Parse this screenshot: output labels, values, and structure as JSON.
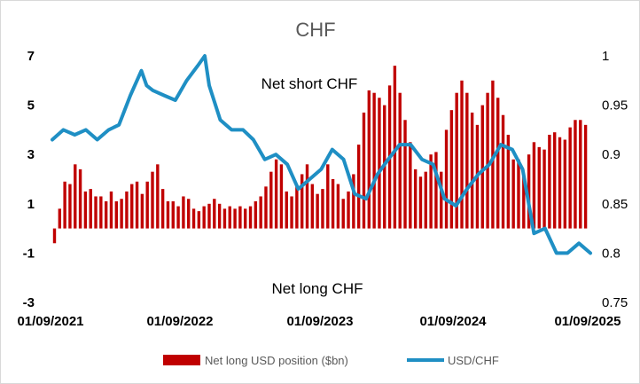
{
  "chart_data": {
    "type": "bar+line",
    "title": "CHF",
    "annotations": [
      "Net short CHF",
      "Net long CHF"
    ],
    "x_tick_labels": [
      "01/09/2021",
      "01/09/2022",
      "01/09/2023",
      "01/09/2024",
      "01/09/2025"
    ],
    "x_range": [
      "2021-09-01",
      "2025-09-01"
    ],
    "y_left": {
      "ticks": [
        -3,
        -1,
        1,
        3,
        5,
        7
      ],
      "range": [
        -3,
        7
      ]
    },
    "y_right": {
      "ticks": [
        0.75,
        0.8,
        0.85,
        0.9,
        0.95,
        1
      ],
      "tick_labels": [
        "0.75",
        "0.8",
        "0.85",
        "0.9",
        "0.95",
        "1"
      ],
      "range": [
        0.75,
        1
      ]
    },
    "grid": false,
    "legend_position": "bottom",
    "series": [
      {
        "name": "Net long USD position ($bn)",
        "kind": "bar",
        "axis": "left",
        "color": "#c00000",
        "x": [
          "2021-09-07",
          "2021-09-21",
          "2021-10-05",
          "2021-10-19",
          "2021-11-02",
          "2021-11-16",
          "2021-11-30",
          "2021-12-14",
          "2021-12-28",
          "2022-01-11",
          "2022-01-25",
          "2022-02-08",
          "2022-02-22",
          "2022-03-08",
          "2022-03-22",
          "2022-04-05",
          "2022-04-19",
          "2022-05-03",
          "2022-05-17",
          "2022-05-31",
          "2022-06-14",
          "2022-06-28",
          "2022-07-12",
          "2022-07-26",
          "2022-08-09",
          "2022-08-23",
          "2022-09-06",
          "2022-09-20",
          "2022-10-04",
          "2022-10-18",
          "2022-11-01",
          "2022-11-15",
          "2022-11-29",
          "2022-12-13",
          "2022-12-27",
          "2023-01-10",
          "2023-01-24",
          "2023-02-07",
          "2023-02-21",
          "2023-03-07",
          "2023-03-21",
          "2023-04-04",
          "2023-04-18",
          "2023-05-02",
          "2023-05-16",
          "2023-05-30",
          "2023-06-13",
          "2023-06-27",
          "2023-07-11",
          "2023-07-25",
          "2023-08-08",
          "2023-08-22",
          "2023-09-05",
          "2023-09-19",
          "2023-10-03",
          "2023-10-17",
          "2023-10-31",
          "2023-11-14",
          "2023-11-28",
          "2023-12-12",
          "2023-12-26",
          "2024-01-09",
          "2024-01-23",
          "2024-02-06",
          "2024-02-20",
          "2024-03-05",
          "2024-03-19",
          "2024-04-02",
          "2024-04-16",
          "2024-04-30",
          "2024-05-14",
          "2024-05-28",
          "2024-06-11",
          "2024-06-25",
          "2024-07-09",
          "2024-07-23",
          "2024-08-06",
          "2024-08-20",
          "2024-09-03",
          "2024-09-17",
          "2024-10-01",
          "2024-10-15",
          "2024-10-29",
          "2024-11-12",
          "2024-11-26",
          "2024-12-10",
          "2024-12-24",
          "2025-01-07",
          "2025-01-21",
          "2025-02-04",
          "2025-02-18",
          "2025-03-04",
          "2025-03-18",
          "2025-04-01",
          "2025-04-15",
          "2025-04-29",
          "2025-05-13",
          "2025-05-27",
          "2025-06-10",
          "2025-06-24",
          "2025-07-08",
          "2025-07-22",
          "2025-08-05",
          "2025-08-19"
        ],
        "values": [
          -0.6,
          0.8,
          1.9,
          1.8,
          2.6,
          2.4,
          1.5,
          1.6,
          1.3,
          1.3,
          1.1,
          1.5,
          1.1,
          1.2,
          1.5,
          1.8,
          1.9,
          1.4,
          1.9,
          2.3,
          2.6,
          1.6,
          1.1,
          1.1,
          0.9,
          1.3,
          1.2,
          0.8,
          0.7,
          0.9,
          1.0,
          1.2,
          1.0,
          0.8,
          0.9,
          0.8,
          0.9,
          0.8,
          0.9,
          1.1,
          1.3,
          1.7,
          2.3,
          2.8,
          2.6,
          1.5,
          1.3,
          1.7,
          2.2,
          2.6,
          1.8,
          1.4,
          1.6,
          2.6,
          2.0,
          1.8,
          1.2,
          1.5,
          2.2,
          3.4,
          4.7,
          5.6,
          5.5,
          5.3,
          5.0,
          5.8,
          6.6,
          5.5,
          4.4,
          3.5,
          2.4,
          2.1,
          2.3,
          3.0,
          3.1,
          2.3,
          4.0,
          4.8,
          5.5,
          6.0,
          5.5,
          4.7,
          4.2,
          5.0,
          5.5,
          6.0,
          5.3,
          4.6,
          3.8,
          2.8,
          2.8,
          2.2,
          3.0,
          3.5,
          3.3,
          3.2,
          3.8,
          3.9,
          3.7,
          3.6,
          4.1,
          4.4,
          4.4,
          4.2
        ]
      },
      {
        "name": "USD/CHF",
        "kind": "line",
        "axis": "right",
        "color": "#1f8fc4",
        "x": [
          "2021-09-01",
          "2021-10-01",
          "2021-11-01",
          "2021-12-01",
          "2022-01-01",
          "2022-02-01",
          "2022-03-01",
          "2022-04-01",
          "2022-05-01",
          "2022-05-15",
          "2022-06-01",
          "2022-07-01",
          "2022-08-01",
          "2022-09-01",
          "2022-10-01",
          "2022-10-20",
          "2022-11-01",
          "2022-12-01",
          "2023-01-01",
          "2023-02-01",
          "2023-03-01",
          "2023-04-01",
          "2023-05-01",
          "2023-06-01",
          "2023-07-01",
          "2023-08-01",
          "2023-09-01",
          "2023-10-01",
          "2023-11-01",
          "2023-12-01",
          "2024-01-01",
          "2024-02-01",
          "2024-03-01",
          "2024-04-01",
          "2024-05-01",
          "2024-06-01",
          "2024-07-01",
          "2024-08-01",
          "2024-09-01",
          "2024-10-01",
          "2024-11-01",
          "2024-12-01",
          "2025-01-01",
          "2025-02-01",
          "2025-03-01",
          "2025-04-01",
          "2025-05-01",
          "2025-06-01",
          "2025-07-01",
          "2025-08-01",
          "2025-09-01"
        ],
        "values": [
          0.915,
          0.925,
          0.92,
          0.925,
          0.915,
          0.925,
          0.93,
          0.96,
          0.985,
          0.97,
          0.965,
          0.96,
          0.955,
          0.975,
          0.99,
          1.0,
          0.97,
          0.935,
          0.925,
          0.925,
          0.915,
          0.895,
          0.9,
          0.89,
          0.865,
          0.875,
          0.885,
          0.905,
          0.895,
          0.86,
          0.855,
          0.88,
          0.895,
          0.91,
          0.91,
          0.895,
          0.89,
          0.855,
          0.848,
          0.865,
          0.88,
          0.89,
          0.91,
          0.905,
          0.885,
          0.82,
          0.825,
          0.8,
          0.8,
          0.81,
          0.8
        ]
      }
    ]
  }
}
